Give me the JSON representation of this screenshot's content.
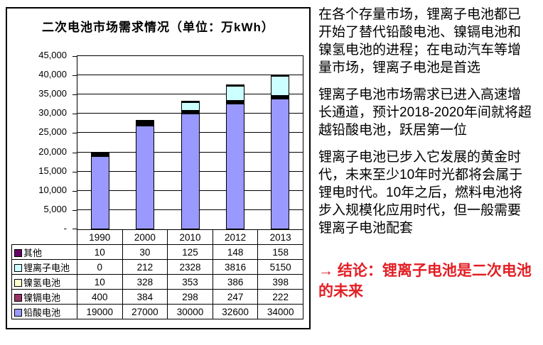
{
  "chart_panel": {
    "title": "二次电池市场需求情况（单位：万kWh）"
  },
  "chart_data": {
    "type": "bar",
    "stacked": true,
    "title": "二次电池市场需求情况",
    "unit_label": "单位：万kWh",
    "categories": [
      "1990",
      "2000",
      "2010",
      "2012",
      "2013"
    ],
    "series": [
      {
        "name": "铅酸电池",
        "color": "#9999ff",
        "values": [
          19000,
          27000,
          30000,
          32600,
          34000
        ]
      },
      {
        "name": "镍镉电池",
        "color": "#993366",
        "values": [
          400,
          384,
          298,
          247,
          222
        ]
      },
      {
        "name": "镍氢电池",
        "color": "#ffffcc",
        "values": [
          10,
          328,
          353,
          386,
          398
        ]
      },
      {
        "name": "锂离子电池",
        "color": "#ccffff",
        "values": [
          0,
          212,
          2328,
          3816,
          5150
        ]
      },
      {
        "name": "其他",
        "color": "#660066",
        "values": [
          10,
          30,
          125,
          148,
          158
        ]
      }
    ],
    "table_row_order": [
      "其他",
      "锂离子电池",
      "镍氢电池",
      "镍镉电池",
      "铅酸电池"
    ],
    "ylim": [
      0,
      45000
    ],
    "ytick_step": 5000,
    "ytick_labels": [
      "45,000",
      "40,000",
      "35,000",
      "30,000",
      "25,000",
      "20,000",
      "15,000",
      "10,000",
      "5,000",
      "-"
    ],
    "grid": true,
    "legend_position": "table-left",
    "bar_border_color": "#000000"
  },
  "notes": {
    "paragraphs": [
      "在各个存量市场，锂离子电池都已开始了替代铅酸电池、镍镉电池和镍氢电池的进程；在电动汽车等增量市场，锂离子电池是首选",
      "锂离子电池市场需求已进入高速增长通道，预计2018-2020年间就将超越铅酸电池，跃居第一位",
      "锂离子电池已步入它发展的黄金时代，未来至少10年时光都将会属于锂电时代。10年之后，燃料电池将步入规模化应用时代，但一般需要锂离子电池配套"
    ],
    "conclusion": "→ 结论：锂离子电池是二次电池的未来",
    "conclusion_color": "#e31e24",
    "text_color": "#000000"
  }
}
